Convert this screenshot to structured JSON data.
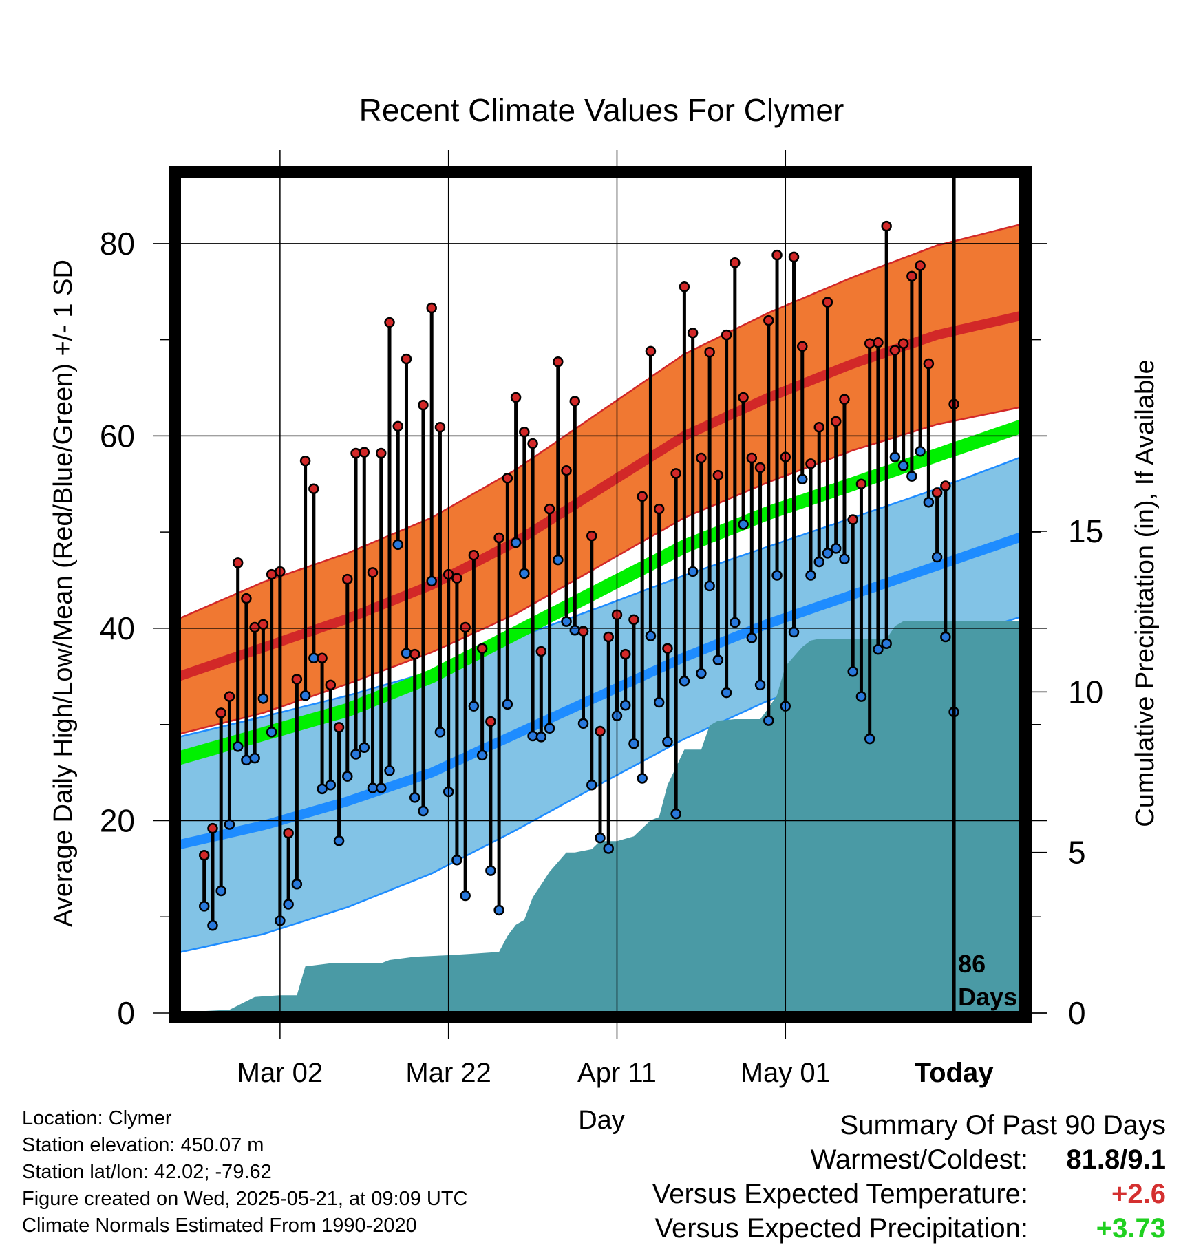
{
  "chart_data": {
    "type": "line",
    "title": "Recent Climate Values For Clymer",
    "xlabel": "Day",
    "ylabel": "Average Daily High/Low/Mean (Red/Blue/Green) +/- 1 SD",
    "y2label": "Cumulative Precipitation (in), If Available",
    "x_tick_labels": [
      "Mar 02",
      "Mar 22",
      "Apr 11",
      "May 01",
      "Today"
    ],
    "x_tick_days": [
      18,
      38,
      58,
      78,
      98
    ],
    "y_ticks": [
      0,
      20,
      40,
      60,
      80
    ],
    "y2_ticks": [
      0,
      5,
      10,
      15
    ],
    "ylim": [
      0,
      87
    ],
    "y2lim": [
      0,
      15
    ],
    "xlim": [
      6,
      106
    ],
    "grid": true,
    "today_day": 98,
    "today_annotation": "86\nDays",
    "normals": {
      "day": [
        6,
        16,
        26,
        36,
        46,
        56,
        66,
        76,
        86,
        96,
        106
      ],
      "high_mean": [
        35.0,
        38.0,
        41.0,
        44.5,
        49.0,
        54.5,
        60.0,
        64.0,
        67.5,
        70.5,
        72.5
      ],
      "high_sd": [
        6.0,
        6.8,
        6.8,
        7.0,
        7.5,
        8.0,
        8.5,
        8.8,
        9.0,
        9.3,
        9.5
      ],
      "low_mean": [
        17.5,
        19.5,
        22.0,
        25.0,
        29.0,
        33.0,
        37.0,
        40.5,
        43.5,
        46.5,
        49.5
      ],
      "low_sd": [
        11.2,
        11.3,
        11.0,
        10.5,
        10.0,
        9.2,
        8.5,
        8.0,
        8.0,
        8.0,
        8.3
      ],
      "avg_mean": [
        26.5,
        29.0,
        31.5,
        35.0,
        39.5,
        44.0,
        48.5,
        52.0,
        55.0,
        58.0,
        61.0
      ]
    },
    "series": [
      {
        "name": "High",
        "values": [
          16.4,
          19.2,
          31.2,
          32.9,
          46.8,
          43.1,
          40.1,
          40.4,
          45.6,
          45.9,
          18.7,
          34.7,
          57.4,
          54.5,
          36.9,
          34.1,
          29.7,
          45.1,
          58.2,
          58.3,
          45.8,
          58.2,
          71.8,
          61.0,
          68.0,
          37.3,
          63.2,
          73.3,
          60.9,
          45.6,
          45.2,
          40.1,
          47.6,
          37.9,
          30.3,
          49.4,
          55.6,
          64.0,
          60.4,
          59.2,
          37.6,
          52.4,
          67.7,
          56.4,
          63.6,
          39.7,
          49.6,
          29.3,
          39.1,
          41.4,
          37.3,
          40.9,
          53.7,
          68.8,
          52.4,
          37.9,
          56.1,
          75.5,
          70.7,
          57.7,
          68.7,
          55.9,
          70.5,
          78.0,
          64.0,
          57.7,
          56.7,
          72.0,
          78.8,
          57.8,
          78.6,
          69.3,
          57.1,
          60.9,
          73.9,
          61.5,
          63.8,
          51.3,
          55.0,
          69.6,
          69.7,
          81.8,
          68.9,
          69.6,
          76.6,
          77.7,
          67.5,
          54.1,
          54.8,
          63.3
        ]
      },
      {
        "name": "Low",
        "values": [
          11.1,
          9.1,
          12.7,
          19.6,
          27.7,
          26.3,
          26.5,
          32.7,
          29.2,
          9.6,
          11.3,
          13.4,
          33.0,
          36.9,
          23.3,
          23.7,
          17.9,
          24.6,
          26.9,
          27.6,
          23.4,
          23.4,
          25.2,
          48.7,
          37.4,
          22.4,
          21.0,
          44.9,
          29.2,
          23.0,
          15.9,
          12.2,
          31.9,
          26.8,
          14.8,
          10.7,
          32.1,
          48.9,
          45.7,
          28.8,
          28.7,
          29.6,
          47.1,
          40.7,
          39.8,
          30.1,
          23.7,
          18.2,
          17.1,
          30.9,
          32.0,
          28.0,
          24.4,
          39.2,
          32.3,
          28.2,
          20.7,
          34.5,
          45.9,
          35.3,
          44.4,
          36.7,
          33.3,
          40.6,
          50.8,
          39.0,
          34.1,
          30.4,
          45.5,
          31.9,
          39.6,
          55.5,
          45.5,
          46.9,
          47.8,
          48.3,
          47.2,
          35.5,
          32.9,
          28.5,
          37.8,
          38.4,
          57.8,
          56.9,
          55.8,
          58.4,
          53.1,
          47.4,
          39.1,
          31.3
        ]
      }
    ],
    "precip_cumulative": {
      "day": [
        6,
        8,
        12,
        15,
        18,
        20,
        21,
        24,
        30,
        31,
        34,
        38,
        41,
        44,
        45,
        46,
        47,
        48,
        50,
        52,
        53,
        55,
        56,
        58,
        60,
        62,
        63,
        64,
        66,
        67,
        68,
        69,
        70,
        72,
        75,
        76,
        77,
        78,
        79,
        80,
        81,
        82,
        90,
        91,
        92,
        98,
        106
      ],
      "value": [
        0.0,
        0.05,
        0.1,
        0.5,
        0.55,
        0.55,
        1.45,
        1.55,
        1.55,
        1.65,
        1.75,
        1.8,
        1.85,
        1.9,
        2.4,
        2.75,
        2.9,
        3.6,
        4.4,
        5.0,
        5.0,
        5.1,
        5.35,
        5.35,
        5.5,
        6.0,
        6.1,
        7.1,
        8.2,
        8.2,
        8.2,
        8.95,
        9.1,
        9.15,
        9.15,
        9.5,
        9.9,
        10.8,
        11.1,
        11.4,
        11.6,
        11.65,
        11.65,
        12.05,
        12.2,
        12.2,
        12.2
      ]
    }
  },
  "footer": {
    "location": "Location: Clymer",
    "elevation": "Station elevation: 450.07 m",
    "latlon": "Station lat/lon: 42.02; -79.62",
    "created": "Figure created on Wed, 2025-05-21, at 09:09 UTC",
    "normals": "Climate Normals Estimated From 1990-2020"
  },
  "summary": {
    "heading": "Summary Of Past 90 Days",
    "warmest_label": "Warmest/Coldest:",
    "warmest_value": "81.8/9.1",
    "temp_label": "Versus Expected Temperature:",
    "temp_value": "+2.6",
    "precip_label": "Versus Expected Precipitation:",
    "precip_value": "+3.73"
  },
  "colors": {
    "high_band": "#f07832",
    "high_mean": "#d22828",
    "low_band": "#82c3e6",
    "low_mean": "#1e8cff",
    "avg_mean": "#00f000",
    "precip_fill": "#4a9aa5",
    "high_dot": "#d22828",
    "low_dot": "#2878dc",
    "temp_anomaly": "#d43030",
    "precip_anomaly": "#20d020"
  }
}
